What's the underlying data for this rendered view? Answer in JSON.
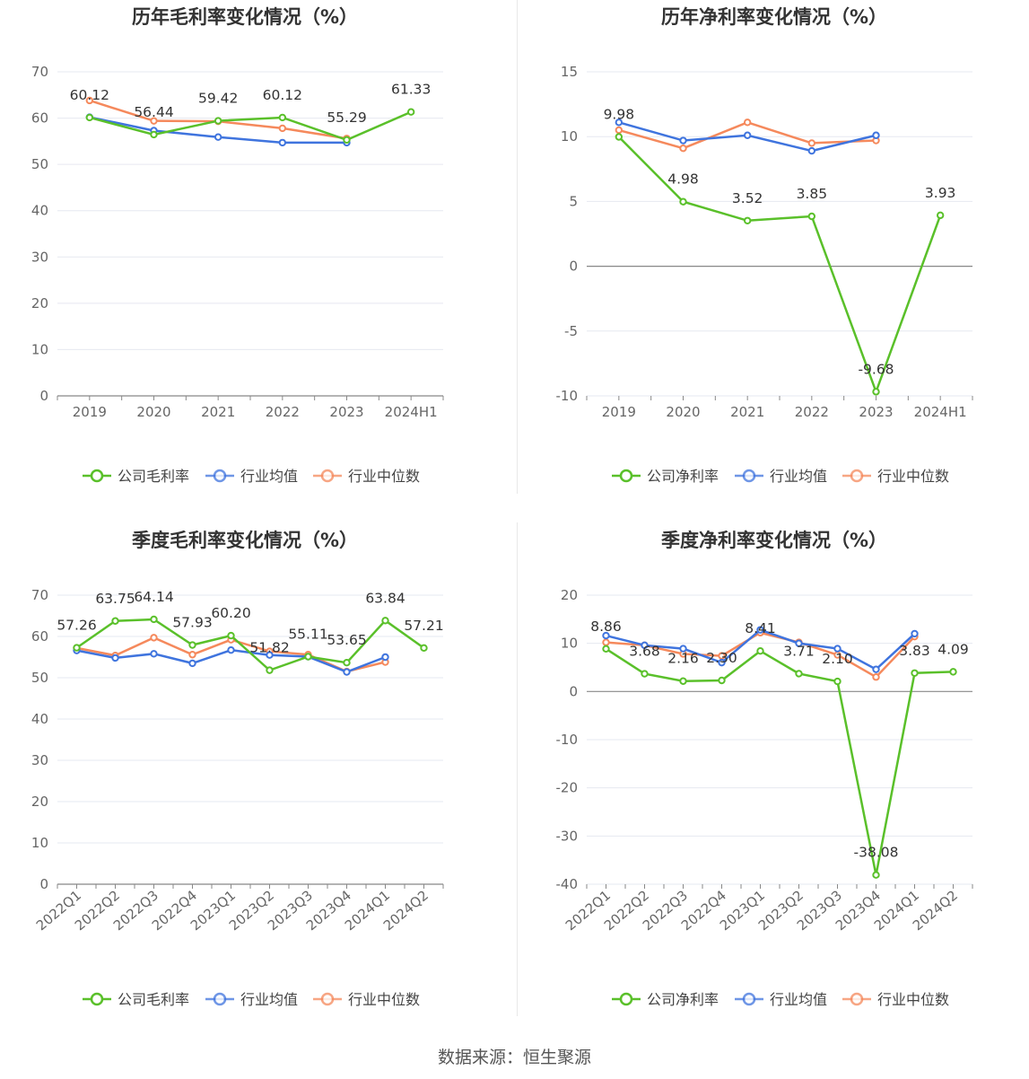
{
  "colors": {
    "company": "#5ac02a",
    "avg": "#3f74de",
    "median": "#f5895c",
    "grid": "#e6e8f0",
    "axis": "#666666",
    "title": "#333333"
  },
  "source": "数据来源：恒生聚源",
  "chart_data": [
    {
      "type": "line",
      "title": "历年毛利率变化情况（%）",
      "categories": [
        "2019",
        "2020",
        "2021",
        "2022",
        "2023",
        "2024H1"
      ],
      "ylim": [
        0,
        70
      ],
      "yticks": [
        0,
        10,
        20,
        30,
        40,
        50,
        60,
        70
      ],
      "grid": true,
      "legend_position": "bottom",
      "series": [
        {
          "name": "公司毛利率",
          "key": "company",
          "values": [
            60.12,
            56.44,
            59.42,
            60.12,
            55.29,
            61.33
          ],
          "labels": true
        },
        {
          "name": "行业均值",
          "key": "avg",
          "values": [
            60.2,
            57.3,
            55.9,
            54.7,
            54.7,
            null
          ]
        },
        {
          "name": "行业中位数",
          "key": "median",
          "values": [
            63.8,
            59.4,
            59.3,
            57.8,
            55.6,
            null
          ]
        }
      ]
    },
    {
      "type": "line",
      "title": "历年净利率变化情况（%）",
      "categories": [
        "2019",
        "2020",
        "2021",
        "2022",
        "2023",
        "2024H1"
      ],
      "ylim": [
        -10,
        15
      ],
      "yticks": [
        -10,
        -5,
        0,
        5,
        10,
        15
      ],
      "grid": true,
      "legend_position": "bottom",
      "series": [
        {
          "name": "公司净利率",
          "key": "company",
          "values": [
            9.98,
            4.98,
            3.52,
            3.85,
            -9.68,
            3.93
          ],
          "labels": true
        },
        {
          "name": "行业均值",
          "key": "avg",
          "values": [
            11.1,
            9.7,
            10.1,
            8.9,
            10.1,
            null
          ]
        },
        {
          "name": "行业中位数",
          "key": "median",
          "values": [
            10.5,
            9.1,
            11.1,
            9.5,
            9.7,
            null
          ]
        }
      ]
    },
    {
      "type": "line",
      "title": "季度毛利率变化情况（%）",
      "categories": [
        "2022Q1",
        "2022Q2",
        "2022Q3",
        "2022Q4",
        "2023Q1",
        "2023Q2",
        "2023Q3",
        "2023Q4",
        "2024Q1",
        "2024Q2"
      ],
      "ylim": [
        0,
        70
      ],
      "yticks": [
        0,
        10,
        20,
        30,
        40,
        50,
        60,
        70
      ],
      "grid": true,
      "legend_position": "bottom",
      "series": [
        {
          "name": "公司毛利率",
          "key": "company",
          "values": [
            57.26,
            63.75,
            64.14,
            57.93,
            60.2,
            51.82,
            55.11,
            53.65,
            63.84,
            57.21
          ],
          "labels": true
        },
        {
          "name": "行业均值",
          "key": "avg",
          "values": [
            56.6,
            54.8,
            55.8,
            53.5,
            56.7,
            55.5,
            55.1,
            51.4,
            55.0,
            null
          ]
        },
        {
          "name": "行业中位数",
          "key": "median",
          "values": [
            57.2,
            55.4,
            59.7,
            55.6,
            59.2,
            56.4,
            55.6,
            51.5,
            53.8,
            null
          ]
        }
      ]
    },
    {
      "type": "line",
      "title": "季度净利率变化情况（%）",
      "categories": [
        "2022Q1",
        "2022Q2",
        "2022Q3",
        "2022Q4",
        "2023Q1",
        "2023Q2",
        "2023Q3",
        "2023Q4",
        "2024Q1",
        "2024Q2"
      ],
      "ylim": [
        -40,
        20
      ],
      "yticks": [
        -40,
        -30,
        -20,
        -10,
        0,
        10,
        20
      ],
      "grid": true,
      "legend_position": "bottom",
      "series": [
        {
          "name": "公司净利率",
          "key": "company",
          "values": [
            8.86,
            3.68,
            2.16,
            2.3,
            8.41,
            3.71,
            2.1,
            -38.08,
            3.83,
            4.09
          ],
          "labels": true
        },
        {
          "name": "行业均值",
          "key": "avg",
          "values": [
            11.6,
            9.6,
            8.9,
            6.0,
            12.8,
            10.0,
            8.9,
            4.6,
            12.0,
            null
          ]
        },
        {
          "name": "行业中位数",
          "key": "median",
          "values": [
            10.2,
            9.6,
            7.8,
            7.4,
            12.2,
            10.2,
            7.6,
            3.0,
            11.4,
            null
          ]
        }
      ]
    }
  ]
}
